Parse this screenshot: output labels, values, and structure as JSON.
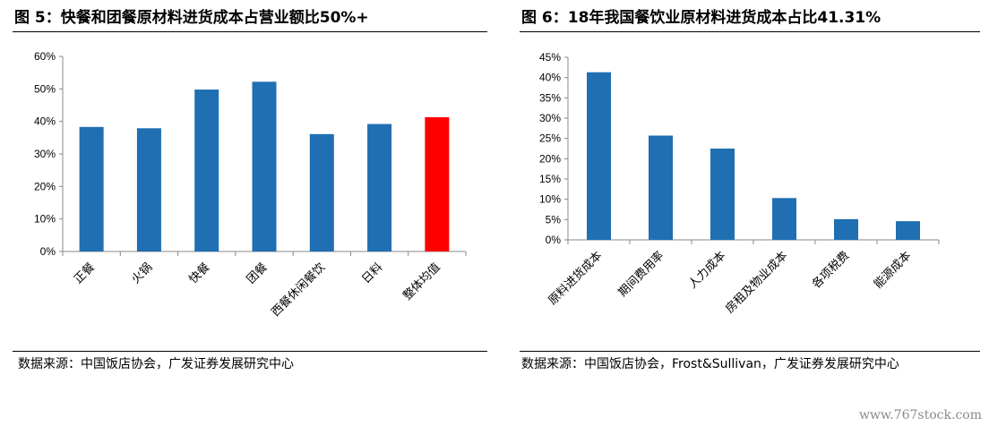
{
  "figures": [
    {
      "title": "图 5：快餐和团餐原材料进货成本占营业额比50%+",
      "source": "数据来源：中国饭店协会，广发证券发展研究中心"
    },
    {
      "title": "图 6：18年我国餐饮业原材料进货成本占比41.31%",
      "source": "数据来源：中国饭店协会，Frost&Sullivan，广发证券发展研究中心"
    }
  ],
  "watermark": "www.767stock.com",
  "chart_data": [
    {
      "type": "bar",
      "title": "快餐和团餐原材料进货成本占营业额比50%+",
      "categories": [
        "正餐",
        "火锅",
        "快餐",
        "团餐",
        "西餐休闲餐饮",
        "日料",
        "整体均值"
      ],
      "values": [
        38.3,
        37.9,
        49.8,
        52.2,
        36.1,
        39.2,
        41.3
      ],
      "ylim": [
        0,
        60
      ],
      "yticks": [
        0,
        10,
        20,
        30,
        40,
        50,
        60
      ],
      "ytick_format": "percent",
      "colors": [
        "#1f6fb2",
        "#1f6fb2",
        "#1f6fb2",
        "#1f6fb2",
        "#1f6fb2",
        "#1f6fb2",
        "#ff0000"
      ],
      "grid": false,
      "legend": "none"
    },
    {
      "type": "bar",
      "title": "18年我国餐饮业原材料进货成本占比41.31%",
      "categories": [
        "原料进货成本",
        "期间费用率",
        "人力成本",
        "房租及物业成本",
        "各项税费",
        "能源成本"
      ],
      "values": [
        41.31,
        25.7,
        22.5,
        10.3,
        5.1,
        4.6
      ],
      "ylim": [
        0,
        45
      ],
      "yticks": [
        0,
        5,
        10,
        15,
        20,
        25,
        30,
        35,
        40,
        45
      ],
      "ytick_format": "percent",
      "colors": [
        "#1f6fb2",
        "#1f6fb2",
        "#1f6fb2",
        "#1f6fb2",
        "#1f6fb2",
        "#1f6fb2"
      ],
      "grid": false,
      "legend": "none"
    }
  ]
}
